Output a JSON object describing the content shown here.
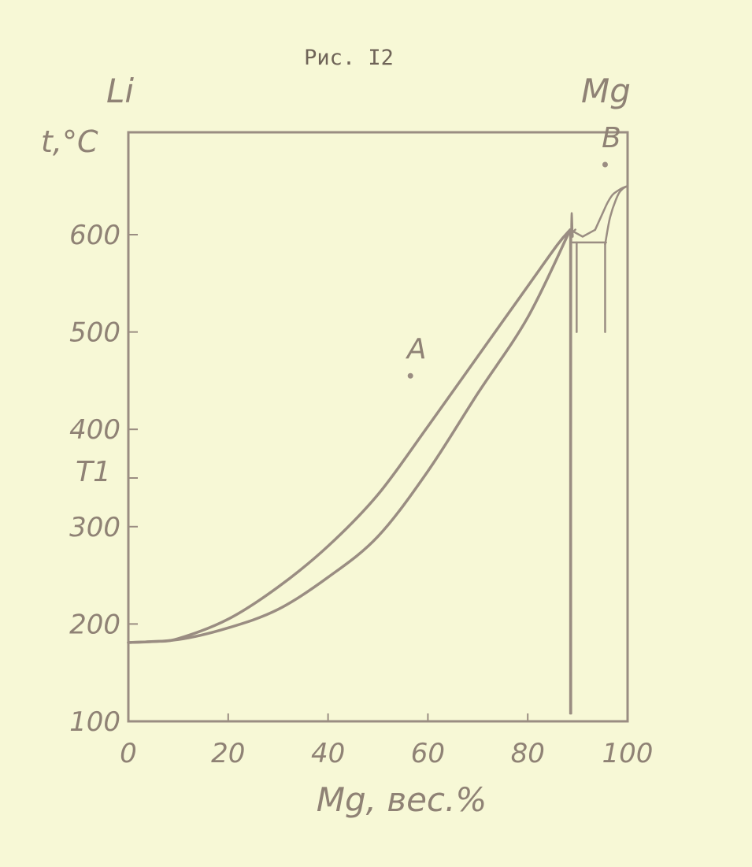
{
  "figure_caption": "Рис. I2",
  "corner_labels": {
    "left": "Li",
    "right": "Mg"
  },
  "colors": {
    "paper": "#f7f8d6",
    "ink": "#9a8d82",
    "text": "#8f8275"
  },
  "chart_data": {
    "type": "line",
    "title": "Рис. I2",
    "xlabel": "Mg, вес.%",
    "ylabel": "t,°C",
    "xlim": [
      0,
      100
    ],
    "ylim": [
      100,
      700
    ],
    "x_ticks": [
      0,
      20,
      40,
      60,
      80,
      100
    ],
    "x_tick_labels": [
      "0",
      "20",
      "40",
      "60",
      "80",
      "100"
    ],
    "y_ticks": [
      100,
      200,
      300,
      400,
      500,
      600
    ],
    "y_tick_labels": [
      "100",
      "200",
      "300",
      "400",
      "500",
      "600"
    ],
    "y_marker_label": "T1",
    "y_marker_value": 350,
    "grid": false,
    "series": [
      {
        "x": [
          0,
          5,
          10,
          20,
          30,
          40,
          50,
          60,
          70,
          80,
          86,
          88.5
        ],
        "y": [
          181,
          182,
          185,
          205,
          238,
          280,
          333,
          403,
          475,
          547,
          590,
          605
        ]
      },
      {
        "x": [
          0,
          10,
          20,
          30,
          40,
          50,
          60,
          70,
          80,
          88.5
        ],
        "y": [
          181,
          184,
          196,
          215,
          248,
          290,
          357,
          437,
          515,
          605
        ]
      },
      {
        "x": [
          88.5,
          91,
          93.5
        ],
        "y": [
          605,
          598,
          605
        ]
      },
      {
        "x": [
          93.5,
          95,
          96,
          97,
          98,
          99,
          100
        ],
        "y": [
          605,
          622,
          633,
          641,
          645,
          648,
          650
        ]
      },
      {
        "x": [
          95.5,
          96.5,
          98,
          99,
          100
        ],
        "y": [
          590,
          618,
          640,
          647,
          650
        ]
      },
      {
        "x": [
          88.5,
          88.5
        ],
        "y": [
          605,
          108
        ]
      },
      {
        "x": [
          88.7,
          88.7,
          89,
          89,
          89.5,
          89.5
        ],
        "y": [
          108,
          582,
          598,
          602,
          605,
          605
        ]
      },
      {
        "x": [
          89,
          89.5,
          93,
          93,
          95.5,
          95.5
        ],
        "y": [
          592,
          592,
          592,
          592,
          592,
          592
        ]
      },
      {
        "x": [
          89.8,
          89.8
        ],
        "y": [
          592,
          500
        ]
      },
      {
        "x": [
          95.5,
          95.5
        ],
        "y": [
          592,
          500
        ]
      }
    ],
    "points": [
      {
        "label": "A",
        "x": 56.5,
        "y": 455
      },
      {
        "label": "B",
        "x": 95.5,
        "y": 672
      }
    ]
  }
}
